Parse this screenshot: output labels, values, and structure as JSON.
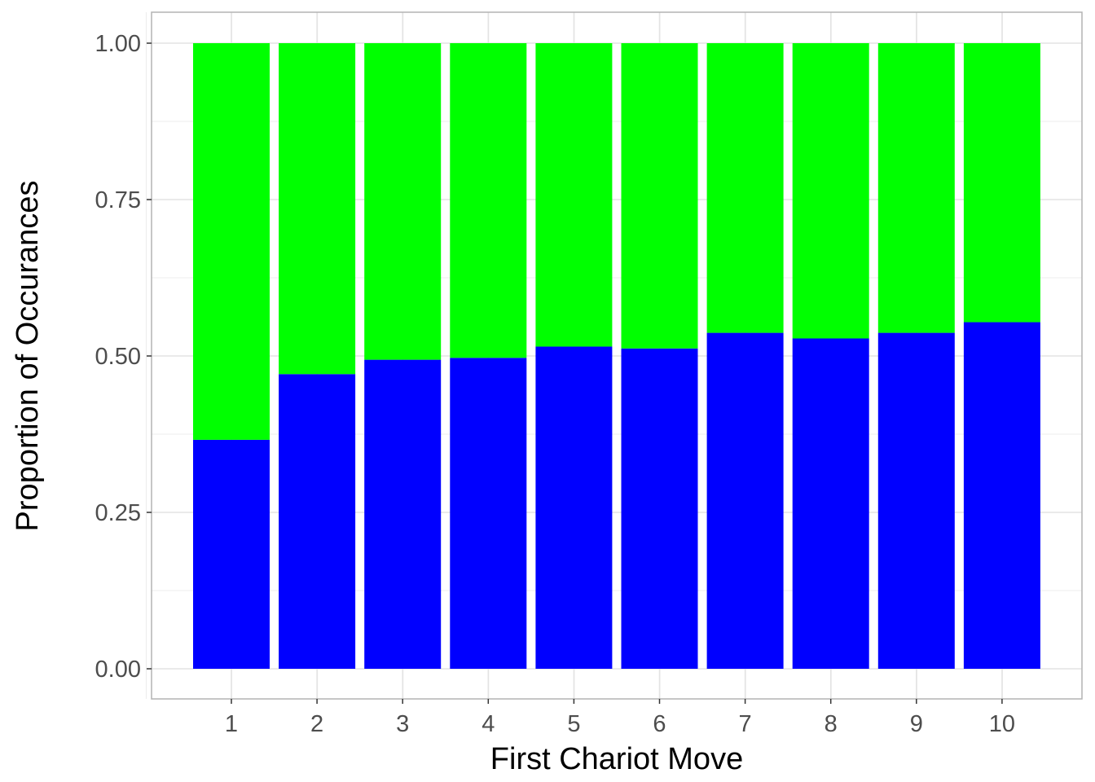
{
  "chart_data": {
    "type": "bar",
    "stacked": true,
    "normalized": true,
    "title": "",
    "xlabel": "First Chariot Move",
    "ylabel": "Proportion of Occurances",
    "categories": [
      "1",
      "2",
      "3",
      "4",
      "5",
      "6",
      "7",
      "8",
      "9",
      "10"
    ],
    "series": [
      {
        "color": "#0000ff",
        "values": [
          0.366,
          0.471,
          0.494,
          0.497,
          0.515,
          0.512,
          0.537,
          0.528,
          0.537,
          0.554
        ]
      },
      {
        "color": "#00ff00",
        "values": [
          0.634,
          0.529,
          0.506,
          0.503,
          0.485,
          0.488,
          0.463,
          0.472,
          0.463,
          0.446
        ]
      }
    ],
    "ylim": [
      0,
      1
    ],
    "yticks": [
      0,
      0.25,
      0.5,
      0.75,
      1
    ],
    "ytick_labels": [
      "0.00",
      "0.25",
      "0.50",
      "0.75",
      "1.00"
    ],
    "grid": true,
    "legend": "none"
  }
}
